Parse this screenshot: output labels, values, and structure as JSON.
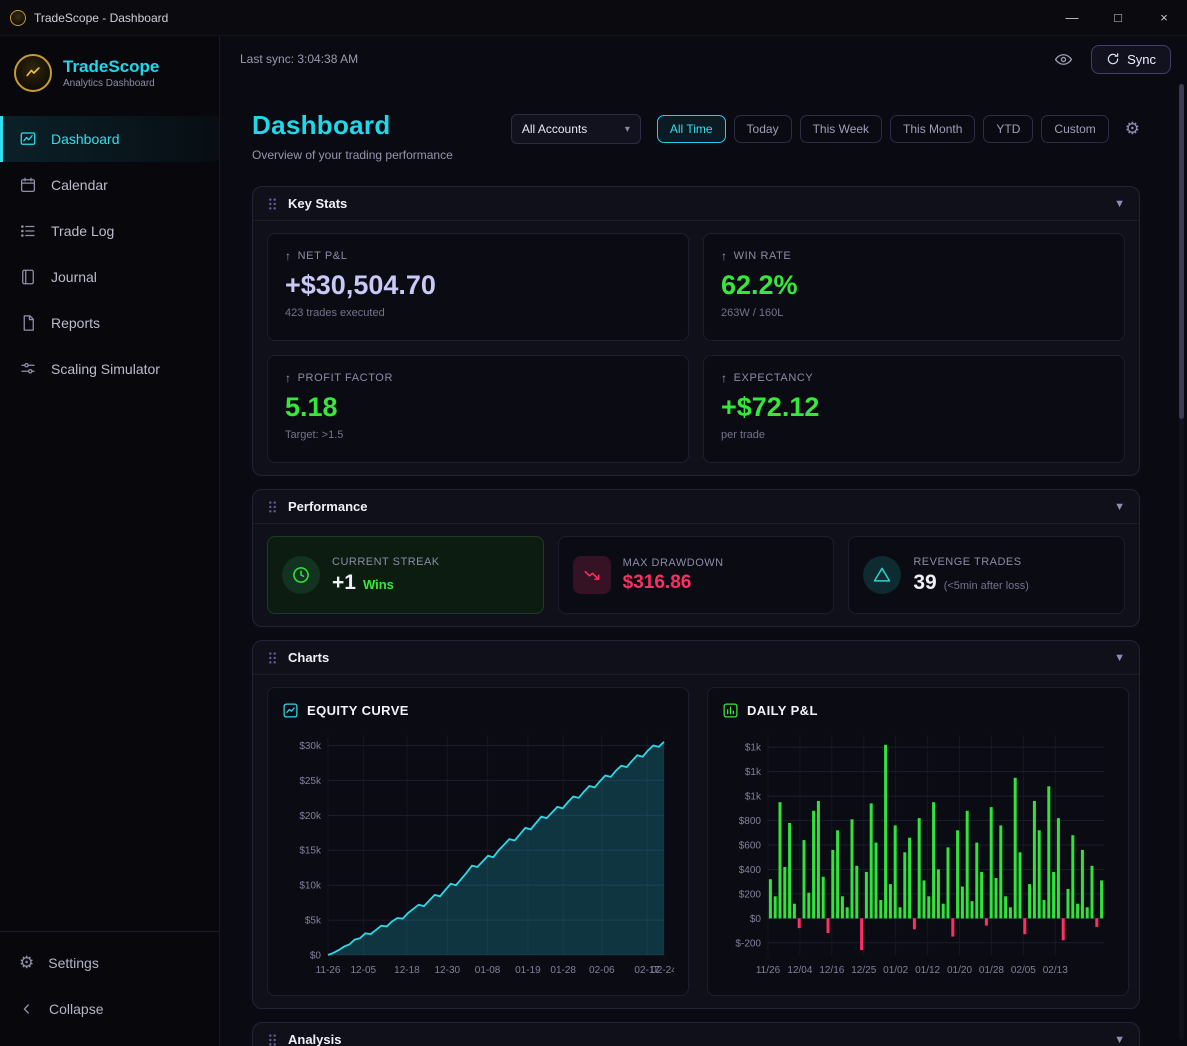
{
  "window": {
    "title": "TradeScope - Dashboard",
    "controls": {
      "minimize": "—",
      "maximize": "□",
      "close": "×"
    }
  },
  "theme": {
    "accent_cyan": "#1fd8e8",
    "green": "#35e83a",
    "pink": "#ff2e63",
    "lavender": "#c9c9f5",
    "gold": "#c89b2e"
  },
  "sidebar": {
    "brand": {
      "name": "TradeScope",
      "subtitle": "Analytics Dashboard"
    },
    "items": [
      {
        "label": "Dashboard",
        "icon": "dashboard-chart-icon",
        "active": true
      },
      {
        "label": "Calendar",
        "icon": "calendar-icon",
        "active": false
      },
      {
        "label": "Trade Log",
        "icon": "list-icon",
        "active": false
      },
      {
        "label": "Journal",
        "icon": "book-icon",
        "active": false
      },
      {
        "label": "Reports",
        "icon": "file-icon",
        "active": false
      },
      {
        "label": "Scaling Simulator",
        "icon": "sliders-icon",
        "active": false
      }
    ],
    "footer": [
      {
        "label": "Settings",
        "icon": "gear-icon"
      },
      {
        "label": "Collapse",
        "icon": "chevron-left-icon"
      }
    ]
  },
  "topbar": {
    "last_sync": "Last sync: 3:04:38 AM",
    "sync_label": "Sync"
  },
  "header": {
    "title": "Dashboard",
    "subtitle": "Overview of your trading performance"
  },
  "filters": {
    "account_selector": "All Accounts",
    "active_range": "All Time",
    "ranges": [
      "All Time",
      "Today",
      "This Week",
      "This Month",
      "YTD",
      "Custom"
    ]
  },
  "key_stats": {
    "title": "Key Stats",
    "cards": [
      {
        "label": "NET P&L",
        "value": "+$30,504.70",
        "sub": "423 trades executed",
        "color": "#c9c9f5"
      },
      {
        "label": "WIN RATE",
        "value": "62.2%",
        "sub": "263W / 160L",
        "color": "#35e83a"
      },
      {
        "label": "PROFIT FACTOR",
        "value": "5.18",
        "sub": "Target: >1.5",
        "color": "#35e83a"
      },
      {
        "label": "EXPECTANCY",
        "value": "+$72.12",
        "sub": "per trade",
        "color": "#35e83a"
      }
    ]
  },
  "performance": {
    "title": "Performance",
    "streak": {
      "label": "CURRENT STREAK",
      "value": "+1",
      "suffix": "Wins"
    },
    "drawdown": {
      "label": "MAX DRAWDOWN",
      "value": "$316.86"
    },
    "revenge": {
      "label": "REVENGE TRADES",
      "value": "39",
      "suffix": "(<5min after loss)"
    }
  },
  "charts_section": {
    "title": "Charts"
  },
  "analysis_section": {
    "title": "Analysis"
  },
  "chart_data": [
    {
      "type": "area",
      "title": "EQUITY CURVE",
      "color": "#2bd9e8",
      "fill": "rgba(34,205,226,0.22)",
      "ylim": [
        0,
        31500
      ],
      "yticks": [
        {
          "v": 0,
          "label": "$0"
        },
        {
          "v": 5000,
          "label": "$5k"
        },
        {
          "v": 10000,
          "label": "$10k"
        },
        {
          "v": 15000,
          "label": "$15k"
        },
        {
          "v": 20000,
          "label": "$20k"
        },
        {
          "v": 25000,
          "label": "$25k"
        },
        {
          "v": 30000,
          "label": "$30k"
        }
      ],
      "xticks": [
        {
          "pos": 0.0,
          "label": "11-26"
        },
        {
          "pos": 0.105,
          "label": "12-05"
        },
        {
          "pos": 0.235,
          "label": "12-18"
        },
        {
          "pos": 0.355,
          "label": "12-30"
        },
        {
          "pos": 0.475,
          "label": "01-08"
        },
        {
          "pos": 0.595,
          "label": "01-19"
        },
        {
          "pos": 0.7,
          "label": "01-28"
        },
        {
          "pos": 0.815,
          "label": "02-06"
        },
        {
          "pos": 0.95,
          "label": "02-17"
        },
        {
          "pos": 1.0,
          "label": "02-24"
        }
      ],
      "values": [
        0,
        300,
        700,
        1200,
        1500,
        2200,
        2400,
        3100,
        3000,
        3600,
        4200,
        4100,
        4800,
        5300,
        5200,
        6000,
        6600,
        7200,
        7000,
        7800,
        8600,
        8400,
        9300,
        10200,
        10000,
        10900,
        11800,
        12800,
        12600,
        13400,
        14200,
        14000,
        15000,
        15800,
        16600,
        16400,
        17300,
        18200,
        18000,
        18900,
        19800,
        19600,
        20400,
        21200,
        21000,
        21900,
        22700,
        22500,
        23400,
        24200,
        24000,
        24900,
        25700,
        25500,
        26400,
        27100,
        26900,
        27800,
        28600,
        28400,
        29300,
        30000,
        29800,
        30505
      ]
    },
    {
      "type": "bar",
      "title": "DAILY P&L",
      "pos_color": "#2fe43a",
      "neg_color": "#ff2e63",
      "ylim": [
        -300,
        1500
      ],
      "yticks": [
        {
          "v": 1400,
          "label": "$1k"
        },
        {
          "v": 1200,
          "label": "$1k"
        },
        {
          "v": 1000,
          "label": "$1k"
        },
        {
          "v": 800,
          "label": "$800"
        },
        {
          "v": 600,
          "label": "$600"
        },
        {
          "v": 400,
          "label": "$400"
        },
        {
          "v": 200,
          "label": "$200"
        },
        {
          "v": 0,
          "label": "$0"
        },
        {
          "v": -200,
          "label": "$-200"
        }
      ],
      "xticks": [
        {
          "pos": 0.0,
          "label": "11/26"
        },
        {
          "pos": 0.095,
          "label": "12/04"
        },
        {
          "pos": 0.19,
          "label": "12/16"
        },
        {
          "pos": 0.285,
          "label": "12/25"
        },
        {
          "pos": 0.38,
          "label": "01/02"
        },
        {
          "pos": 0.475,
          "label": "01/12"
        },
        {
          "pos": 0.57,
          "label": "01/20"
        },
        {
          "pos": 0.665,
          "label": "01/28"
        },
        {
          "pos": 0.76,
          "label": "02/05"
        },
        {
          "pos": 0.855,
          "label": "02/13"
        }
      ],
      "values": [
        320,
        180,
        950,
        420,
        780,
        120,
        -80,
        640,
        210,
        880,
        960,
        340,
        -120,
        560,
        720,
        180,
        90,
        810,
        430,
        -260,
        380,
        940,
        620,
        150,
        1420,
        280,
        760,
        90,
        540,
        660,
        -90,
        820,
        310,
        180,
        950,
        400,
        120,
        580,
        -150,
        720,
        260,
        880,
        140,
        620,
        380,
        -60,
        910,
        330,
        760,
        180,
        90,
        1150,
        540,
        -130,
        280,
        960,
        720,
        150,
        1080,
        380,
        820,
        -180,
        240,
        680,
        120,
        560,
        90,
        430,
        -70,
        310
      ]
    }
  ]
}
